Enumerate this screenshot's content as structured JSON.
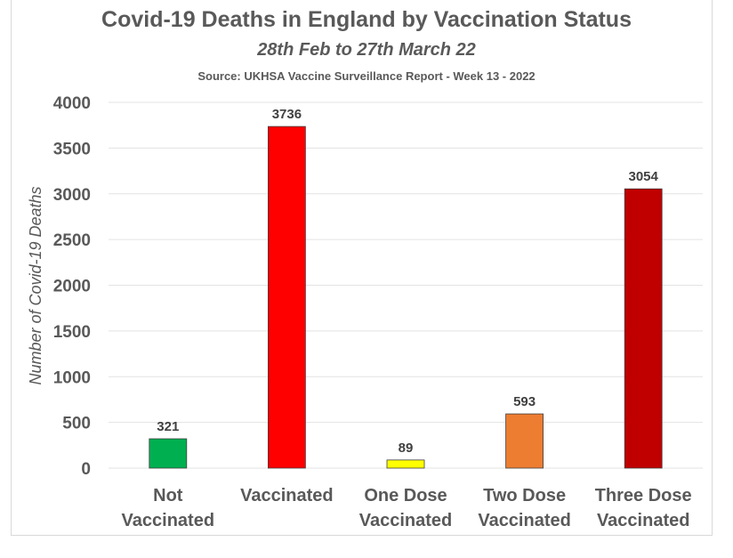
{
  "chart_data": {
    "type": "bar",
    "title": "Covid-19 Deaths in England by Vaccination Status",
    "subtitle": "28th Feb to 27th March 22",
    "source": "Source: UKHSA Vaccine Surveillance Report - Week 13 - 2022",
    "xlabel": "",
    "ylabel": "Number of Covid-19 Deaths",
    "ylim": [
      0,
      4000
    ],
    "yticks": [
      0,
      500,
      1000,
      1500,
      2000,
      2500,
      3000,
      3500,
      4000
    ],
    "grid": true,
    "categories": [
      [
        "Not",
        "Vaccinated"
      ],
      [
        "Vaccinated"
      ],
      [
        "One Dose",
        "Vaccinated"
      ],
      [
        "Two Dose",
        "Vaccinated"
      ],
      [
        "Three Dose",
        "Vaccinated"
      ]
    ],
    "values": [
      321,
      3736,
      89,
      593,
      3054
    ],
    "colors": [
      "#00b050",
      "#ff0000",
      "#ffff00",
      "#ed7d31",
      "#c00000"
    ]
  }
}
